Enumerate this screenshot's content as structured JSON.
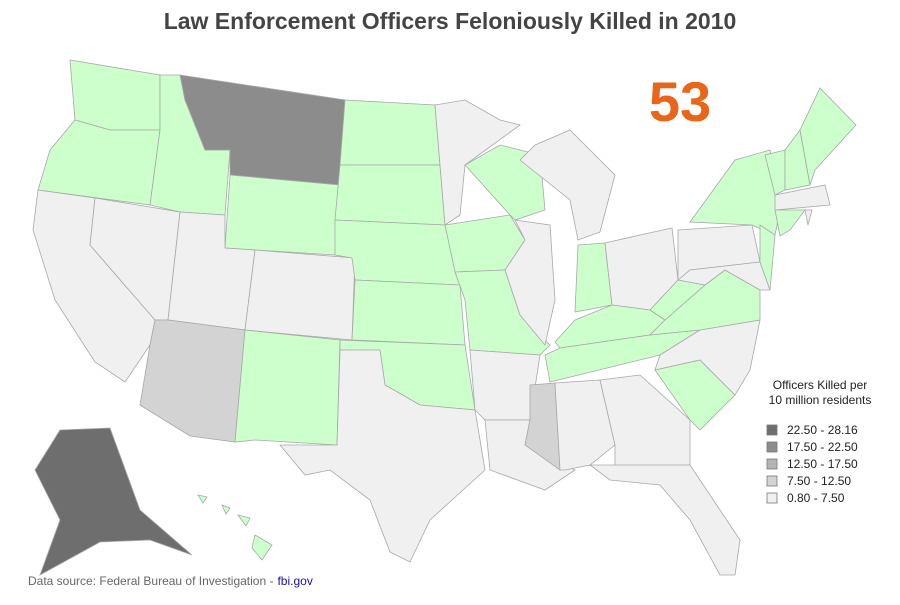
{
  "title": "Law Enforcement Officers Feloniously Killed in 2010",
  "highlight": {
    "value": 53,
    "color": "#e8651a"
  },
  "legend": {
    "title_lines": [
      "Officers Killed per",
      "10 million residents"
    ],
    "items": [
      {
        "label": "22.50 - 28.16",
        "color": "#6e6e6e"
      },
      {
        "label": "17.50 - 22.50",
        "color": "#8c8c8c"
      },
      {
        "label": "12.50 - 17.50",
        "color": "#b4b4b4"
      },
      {
        "label": "7.50 - 12.50",
        "color": "#d3d3d3"
      },
      {
        "label": "0.80 - 7.50",
        "color": "#f0f0f0"
      }
    ]
  },
  "footer": {
    "source": "Data source: Federal Bureau of Investigation -",
    "link": "fbi.gov"
  }
}
